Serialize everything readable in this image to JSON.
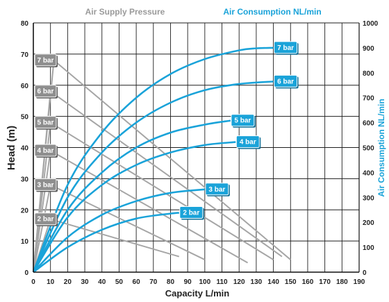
{
  "chart_data": {
    "type": "line",
    "header_left": "Air Supply Pressure",
    "header_right": "Air Consumption NL/min",
    "xlabel": "Capacity L/min",
    "ylabel": "Head (m)",
    "y2label": "Air Consumption NL/min",
    "xlim": [
      0,
      190
    ],
    "ylim": [
      0,
      80
    ],
    "y2lim": [
      0,
      1000
    ],
    "xticks": [
      0,
      10,
      20,
      30,
      40,
      50,
      60,
      70,
      80,
      90,
      100,
      110,
      120,
      130,
      140,
      150,
      160,
      170,
      180,
      190
    ],
    "yticks": [
      0,
      10,
      20,
      30,
      40,
      50,
      60,
      70,
      80
    ],
    "y2ticks": [
      0,
      100,
      200,
      300,
      400,
      500,
      600,
      700,
      800,
      900,
      1000
    ],
    "grid": true,
    "colors": {
      "head": "#a6a6a6",
      "air": "#1aa3d9",
      "grey_tag": "#8e8e8e",
      "blue_tag": "#1aa3d9"
    },
    "head_series": [
      {
        "name": "7 bar",
        "points": [
          [
            0,
            0
          ],
          [
            12,
            68
          ],
          [
            150,
            4
          ]
        ]
      },
      {
        "name": "6 bar",
        "points": [
          [
            0,
            0
          ],
          [
            10,
            58
          ],
          [
            145,
            5
          ]
        ]
      },
      {
        "name": "5 bar",
        "points": [
          [
            0,
            0
          ],
          [
            10,
            48
          ],
          [
            140,
            4
          ]
        ]
      },
      {
        "name": "4 bar",
        "points": [
          [
            0,
            0
          ],
          [
            10,
            39
          ],
          [
            125,
            3
          ]
        ]
      },
      {
        "name": "3 bar",
        "points": [
          [
            0,
            0
          ],
          [
            10,
            28
          ],
          [
            100,
            4
          ]
        ]
      },
      {
        "name": "2 bar",
        "points": [
          [
            0,
            0
          ],
          [
            10,
            17
          ],
          [
            85,
            5
          ]
        ]
      }
    ],
    "air_series": [
      {
        "name": "7 bar",
        "points": [
          [
            0,
            0
          ],
          [
            20,
            350
          ],
          [
            40,
            560
          ],
          [
            60,
            700
          ],
          [
            80,
            795
          ],
          [
            100,
            855
          ],
          [
            120,
            890
          ],
          [
            130,
            898
          ],
          [
            140,
            900
          ]
        ]
      },
      {
        "name": "6 bar",
        "points": [
          [
            0,
            0
          ],
          [
            20,
            300
          ],
          [
            40,
            480
          ],
          [
            60,
            600
          ],
          [
            80,
            680
          ],
          [
            100,
            730
          ],
          [
            120,
            755
          ],
          [
            140,
            765
          ]
        ]
      },
      {
        "name": "5 bar",
        "points": [
          [
            0,
            0
          ],
          [
            20,
            250
          ],
          [
            40,
            400
          ],
          [
            60,
            500
          ],
          [
            80,
            560
          ],
          [
            100,
            592
          ],
          [
            115,
            608
          ]
        ]
      },
      {
        "name": "4 bar",
        "points": [
          [
            0,
            0
          ],
          [
            20,
            220
          ],
          [
            40,
            350
          ],
          [
            60,
            430
          ],
          [
            80,
            480
          ],
          [
            100,
            510
          ],
          [
            118,
            522
          ]
        ]
      },
      {
        "name": "3 bar",
        "points": [
          [
            0,
            0
          ],
          [
            20,
            140
          ],
          [
            40,
            230
          ],
          [
            60,
            285
          ],
          [
            80,
            318
          ],
          [
            100,
            332
          ]
        ]
      },
      {
        "name": "2 bar",
        "points": [
          [
            0,
            0
          ],
          [
            20,
            100
          ],
          [
            40,
            170
          ],
          [
            60,
            215
          ],
          [
            80,
            235
          ],
          [
            85,
            238
          ]
        ]
      }
    ]
  }
}
